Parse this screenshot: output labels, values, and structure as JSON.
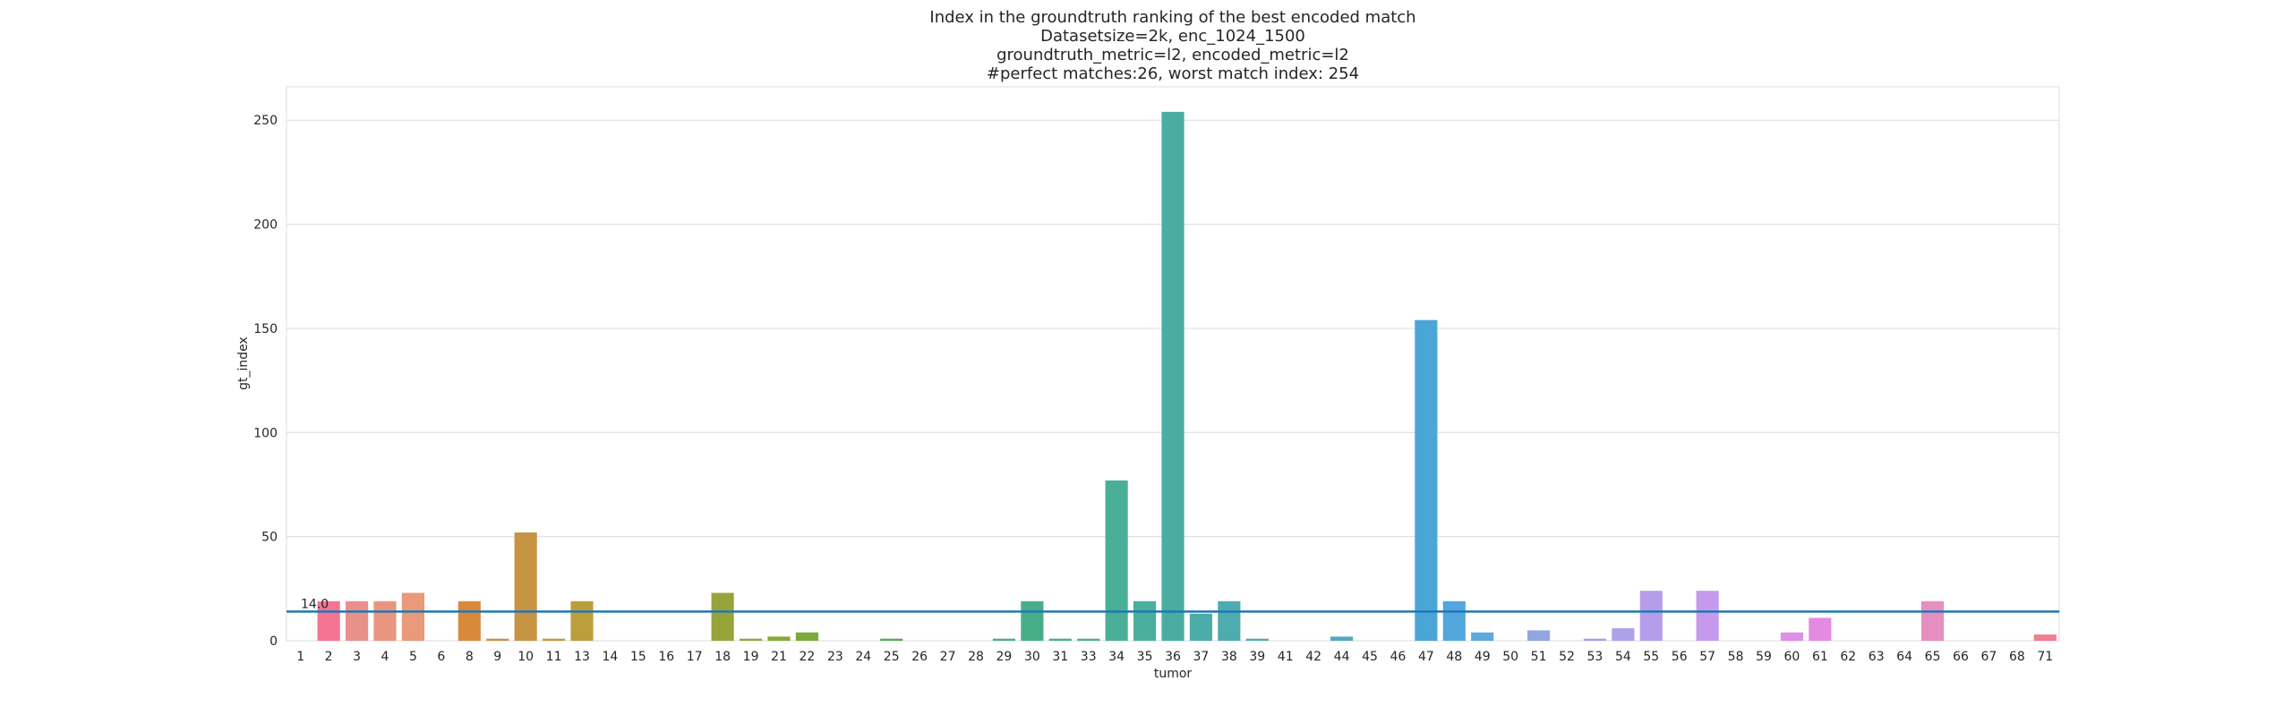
{
  "chart_data": {
    "type": "bar",
    "title": [
      "Index in the groundtruth ranking of the best encoded match",
      "Datasetsize=2k, enc_1024_1500",
      "groundtruth_metric=l2, encoded_metric=l2",
      "#perfect matches:26, worst match index: 254"
    ],
    "xlabel": "tumor",
    "ylabel": "gt_index",
    "ylim": [
      0,
      266
    ],
    "yticks": [
      0,
      50,
      100,
      150,
      200,
      250
    ],
    "grid": "horizontal",
    "categories": [
      "1",
      "2",
      "3",
      "4",
      "5",
      "6",
      "8",
      "9",
      "10",
      "11",
      "13",
      "14",
      "15",
      "16",
      "17",
      "18",
      "19",
      "21",
      "22",
      "23",
      "24",
      "25",
      "26",
      "27",
      "28",
      "29",
      "30",
      "31",
      "33",
      "34",
      "35",
      "36",
      "37",
      "38",
      "39",
      "41",
      "42",
      "44",
      "45",
      "46",
      "47",
      "48",
      "49",
      "50",
      "51",
      "52",
      "53",
      "54",
      "55",
      "56",
      "57",
      "58",
      "59",
      "60",
      "61",
      "62",
      "63",
      "64",
      "65",
      "66",
      "67",
      "68",
      "71"
    ],
    "values": [
      0,
      19,
      19,
      19,
      23,
      0,
      19,
      1,
      52,
      1,
      19,
      0,
      0,
      0,
      0,
      23,
      1,
      2,
      4,
      0,
      0,
      1,
      0,
      0,
      0,
      1,
      19,
      1,
      1,
      77,
      19,
      254,
      13,
      19,
      1,
      0,
      0,
      2,
      0,
      0,
      154,
      19,
      4,
      0,
      5,
      0,
      1,
      6,
      24,
      0,
      24,
      0,
      0,
      4,
      11,
      0,
      0,
      0,
      19,
      0,
      0,
      0,
      3
    ],
    "colors": [
      "#f77189",
      "#f47592",
      "#e8918a",
      "#e99580",
      "#e89a7a",
      "#e4a06a",
      "#d8893c",
      "#cc924a",
      "#c79444",
      "#c29a42",
      "#bb9f3d",
      "#b3a23f",
      "#a8a640",
      "#a3a63d",
      "#9aa73b",
      "#97a43a",
      "#8fa83a",
      "#86a93b",
      "#7ba93c",
      "#6fab40",
      "#5ea94e",
      "#56aa60",
      "#4fac6e",
      "#4aad78",
      "#49ae7f",
      "#49ae84",
      "#48ae89",
      "#48ae8e",
      "#49af93",
      "#4aaf98",
      "#4aaf9d",
      "#4aada2",
      "#4cacaa",
      "#4eabae",
      "#50aab2",
      "#52a9b7",
      "#54a8bb",
      "#56a7c0",
      "#58a6c5",
      "#5aa5ca",
      "#4aa6d6",
      "#52a7dc",
      "#5da9de",
      "#6ca8de",
      "#90a7e3",
      "#9aa5e6",
      "#a4a2e9",
      "#aea0ea",
      "#b69dec",
      "#bd9bec",
      "#c59aed",
      "#cc98ec",
      "#d395ea",
      "#dc90e6",
      "#e48ae2",
      "#e98bd6",
      "#ec8bcc",
      "#ee8bc2",
      "#e68ec0",
      "#ef8ab3",
      "#f186a8",
      "#f3829e",
      "#f47e94"
    ],
    "hline": {
      "value": 14.0,
      "label": "14.0",
      "color": "#1f77b4"
    }
  }
}
